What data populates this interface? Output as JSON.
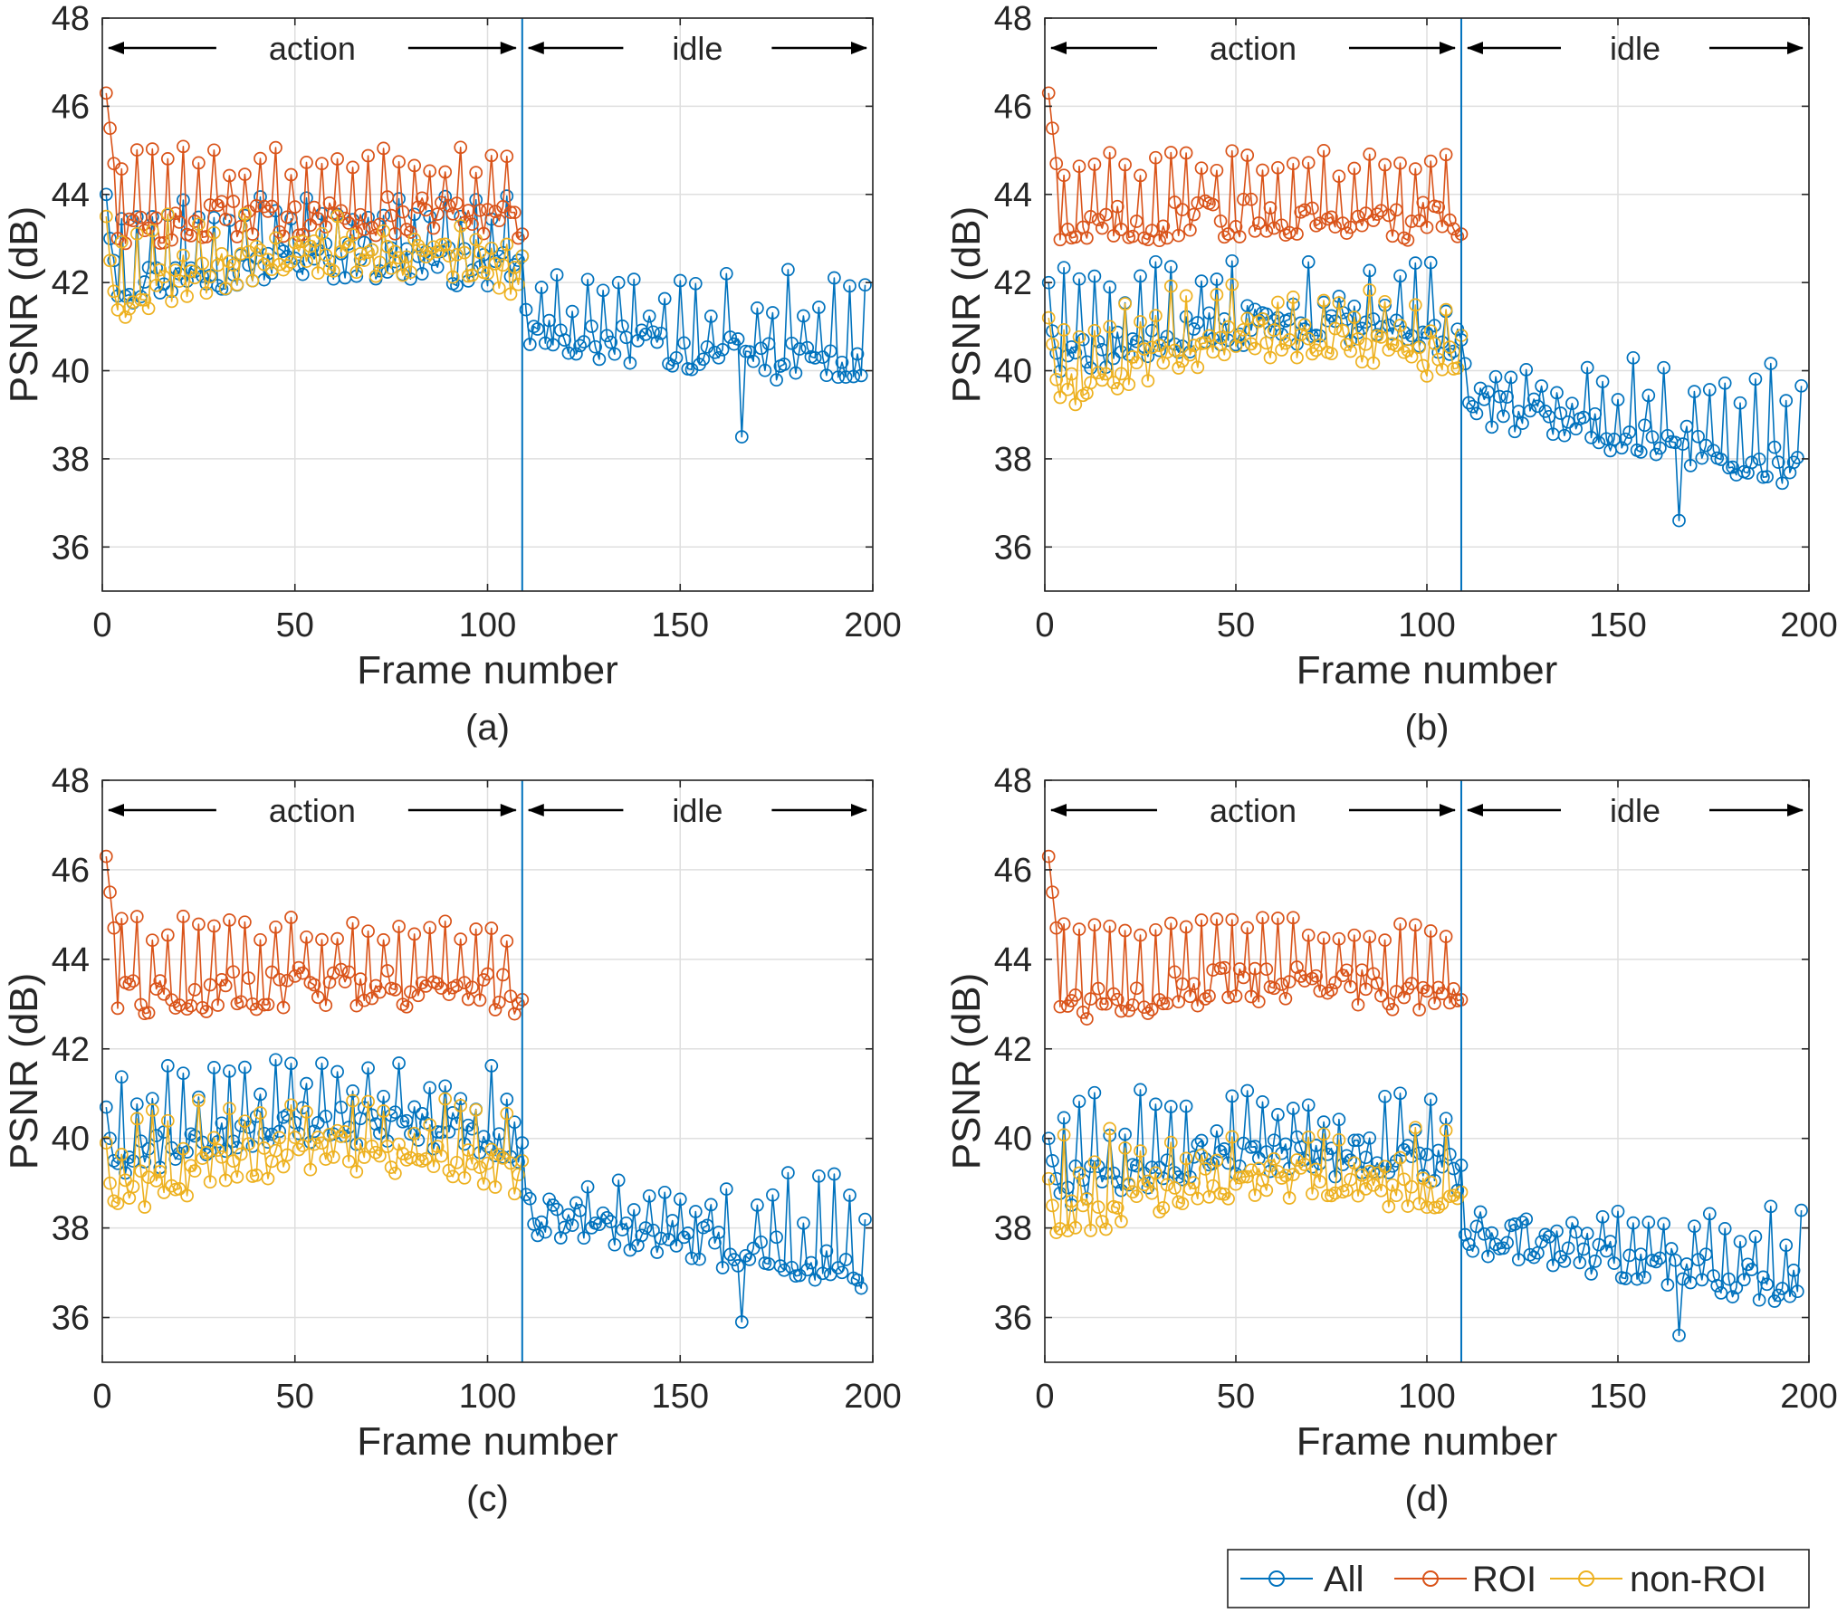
{
  "colors": {
    "All": "#0072BD",
    "ROI": "#D95319",
    "non-ROI": "#EDB120"
  },
  "legend": {
    "placement": "bottom-right",
    "entries": [
      "All",
      "ROI",
      "non-ROI"
    ]
  },
  "chart_data": [
    {
      "type": "line",
      "marker": "circle",
      "panel_label": "(a)",
      "xlabel": "Frame number",
      "ylabel": "PSNR (dB)",
      "xlim": [
        0,
        200
      ],
      "ylim": [
        35,
        48
      ],
      "xticks": [
        0,
        50,
        100,
        150,
        200
      ],
      "yticks": [
        36,
        38,
        40,
        42,
        44,
        46,
        48
      ],
      "grid": true,
      "phase_boundary": 109,
      "phases": [
        {
          "label": "action",
          "from": 0,
          "to": 109
        },
        {
          "label": "idle",
          "from": 109,
          "to": 200
        }
      ],
      "action_frames": 109,
      "idle_frames": 89,
      "anchors": {
        "All": {
          "start": [
            44.0,
            43.0,
            42.5
          ],
          "action": [
            41.5,
            42.5
          ],
          "action_key": [
            43.4,
            44.0
          ],
          "end": 42.6,
          "idle": [
            40.0,
            40.8
          ],
          "idle_key": [
            41.2,
            42.3
          ],
          "min": 38.5
        },
        "ROI": {
          "start": [
            46.3,
            45.5,
            44.7
          ],
          "action": [
            43.0,
            43.5
          ],
          "action_key": [
            44.4,
            45.1
          ],
          "end": 43.1
        },
        "non-ROI": {
          "start": [
            43.5,
            42.5,
            41.8
          ],
          "action": [
            40.9,
            42.6
          ],
          "action_key": [
            42.4,
            43.6
          ],
          "end": 42.6
        }
      }
    },
    {
      "type": "line",
      "marker": "circle",
      "panel_label": "(b)",
      "xlabel": "Frame number",
      "ylabel": "PSNR (dB)",
      "xlim": [
        0,
        200
      ],
      "ylim": [
        35,
        48
      ],
      "xticks": [
        0,
        50,
        100,
        150,
        200
      ],
      "yticks": [
        36,
        38,
        40,
        42,
        44,
        46,
        48
      ],
      "grid": true,
      "phase_boundary": 109,
      "phases": [
        {
          "label": "action",
          "from": 0,
          "to": 109
        },
        {
          "label": "idle",
          "from": 109,
          "to": 200
        }
      ],
      "action_frames": 109,
      "idle_frames": 89,
      "anchors": {
        "All": {
          "start": [
            42.0,
            40.9,
            40.4
          ],
          "action": [
            39.6,
            41.0
          ],
          "action_key": [
            41.2,
            42.5
          ],
          "end": 40.7,
          "idle": [
            37.8,
            39.2
          ],
          "idle_key": [
            39.2,
            40.3
          ],
          "min": 36.6
        },
        "ROI": {
          "start": [
            46.3,
            45.5,
            44.7
          ],
          "action": [
            42.9,
            43.5
          ],
          "action_key": [
            44.4,
            45.0
          ],
          "end": 43.1
        },
        "non-ROI": {
          "start": [
            41.2,
            40.6,
            39.8
          ],
          "action": [
            38.8,
            40.7
          ],
          "action_key": [
            40.6,
            42.0
          ],
          "end": 40.8
        }
      }
    },
    {
      "type": "line",
      "marker": "circle",
      "panel_label": "(c)",
      "xlabel": "Frame number",
      "ylabel": "PSNR (dB)",
      "xlim": [
        0,
        200
      ],
      "ylim": [
        35,
        48
      ],
      "xticks": [
        0,
        50,
        100,
        150,
        200
      ],
      "yticks": [
        36,
        38,
        40,
        42,
        44,
        46,
        48
      ],
      "grid": true,
      "phase_boundary": 109,
      "phases": [
        {
          "label": "action",
          "from": 0,
          "to": 109
        },
        {
          "label": "idle",
          "from": 109,
          "to": 200
        }
      ],
      "action_frames": 109,
      "idle_frames": 89,
      "anchors": {
        "All": {
          "start": [
            40.7,
            40.0,
            39.5
          ],
          "action": [
            39.1,
            40.3
          ],
          "action_key": [
            40.5,
            41.8
          ],
          "end": 39.9,
          "idle": [
            37.0,
            38.3
          ],
          "idle_key": [
            38.0,
            39.3
          ],
          "min": 35.9
        },
        "ROI": {
          "start": [
            46.3,
            45.5,
            44.7
          ],
          "action": [
            42.8,
            43.4
          ],
          "action_key": [
            44.4,
            45.0
          ],
          "end": 43.1
        },
        "non-ROI": {
          "start": [
            39.9,
            39.0,
            38.6
          ],
          "action": [
            38.0,
            39.7
          ],
          "action_key": [
            39.6,
            40.9
          ],
          "end": 39.5
        }
      }
    },
    {
      "type": "line",
      "marker": "circle",
      "panel_label": "(d)",
      "xlabel": "Frame number",
      "ylabel": "PSNR (dB)",
      "xlim": [
        0,
        200
      ],
      "ylim": [
        35,
        48
      ],
      "xticks": [
        0,
        50,
        100,
        150,
        200
      ],
      "yticks": [
        36,
        38,
        40,
        42,
        44,
        46,
        48
      ],
      "grid": true,
      "phase_boundary": 109,
      "phases": [
        {
          "label": "action",
          "from": 0,
          "to": 109
        },
        {
          "label": "idle",
          "from": 109,
          "to": 200
        }
      ],
      "action_frames": 109,
      "idle_frames": 89,
      "anchors": {
        "All": {
          "start": [
            40.0,
            39.5,
            39.1
          ],
          "action": [
            38.4,
            39.6
          ],
          "action_key": [
            39.8,
            41.2
          ],
          "end": 39.4,
          "idle": [
            36.6,
            37.9
          ],
          "idle_key": [
            37.6,
            38.5
          ],
          "min": 35.6
        },
        "ROI": {
          "start": [
            46.3,
            45.5,
            44.7
          ],
          "action": [
            42.8,
            43.4
          ],
          "action_key": [
            44.4,
            45.0
          ],
          "end": 43.1
        },
        "non-ROI": {
          "start": [
            39.1,
            38.5,
            37.9
          ],
          "action": [
            37.4,
            39.1
          ],
          "action_key": [
            39.0,
            40.3
          ],
          "end": 38.8
        }
      }
    }
  ]
}
